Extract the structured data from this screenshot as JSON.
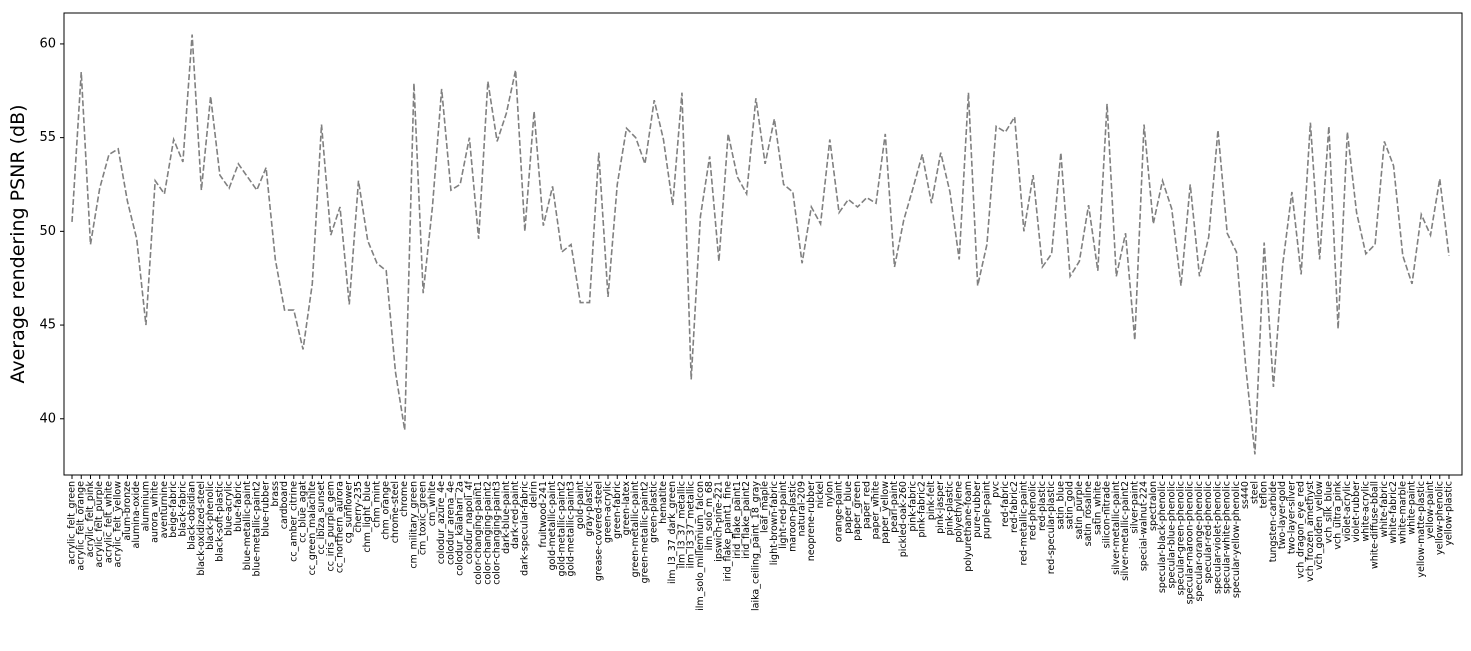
{
  "chart_data": {
    "type": "line",
    "y_label": "Average rendering PSNR (dB)",
    "categories": [
      "acrylic_felt_green",
      "acrylic_felt_orange",
      "acrylic_felt_pink",
      "acrylic_felt_purple",
      "acrylic_felt_white",
      "acrylic_felt_yellow",
      "alum-bronze",
      "alumina-oxide",
      "aluminium",
      "aurora_white",
      "aventurnine",
      "beige-fabric",
      "black-fabric",
      "black-obsidian",
      "black-oxidized-steel",
      "black-phenolic",
      "black-soft-plastic",
      "blue-acrylic",
      "blue-fabric",
      "blue-metallic-paint",
      "blue-metallic-paint2",
      "blue-rubber",
      "brass",
      "cardboard",
      "cc_amber_citrine",
      "cc_blue_agat",
      "cc_green_malachite",
      "cc_ibiza_sunset",
      "cc_iris_purple_gem",
      "cc_northern_aurora",
      "cg_sunflower",
      "cherry-235",
      "chm_light_blue",
      "chm_mint",
      "chm_orange",
      "chrome-steel",
      "chrome",
      "cm_military_green",
      "cm_toxic_green",
      "cm_white",
      "colodur_azure_4e",
      "colodur_arena_4e",
      "colodur_kalahari_2a",
      "colodur_napoli_4f",
      "color-changing-paint1",
      "color-changing-paint2",
      "color-changing-paint3",
      "dark-blue-paint",
      "dark-red-paint",
      "dark-specular-fabric",
      "delrin",
      "fruitwood-241",
      "gold-metallic-paint",
      "gold-metallic-paint2",
      "gold-metallic-paint3",
      "gold-paint",
      "gray-plastic",
      "grease-covered-steel",
      "green-acrylic",
      "green-fabric",
      "green-latex",
      "green-metallic-paint",
      "green-metallic-paint2",
      "green-plastic",
      "hematite",
      "ilm_l3_37_dark_green",
      "ilm_l3_37_metallic",
      "ilm_l3_37_metallic",
      "ilm_solo_millennium_falcon",
      "ilm_solo_m_68",
      "ipswich-pine-221",
      "irid_flake_paint1_fine",
      "irid_flake_paint1",
      "irid_flake_paint2",
      "laika_ceiling_paint_18_gray",
      "leaf_maple",
      "light-brown-fabric",
      "light-red-paint",
      "maroon-plastic",
      "natural-209",
      "neoprene-rubber",
      "nickel",
      "nylon",
      "orange-paint",
      "paper_blue",
      "paper_green",
      "paper_red",
      "paper_white",
      "paper_yellow",
      "pearl-paint",
      "pickled-oak-260",
      "pink-fabric",
      "pink-fabric2",
      "pink-felt",
      "pink-jasper",
      "pink-plastic",
      "polyethylene",
      "polyurethane-foam",
      "pure-rubber",
      "purple-paint",
      "pvc",
      "red-fabric",
      "red-fabric2",
      "red-metallic-paint",
      "red-phenolic",
      "red-plastic",
      "red-specular-plastic",
      "satin_blue",
      "satin_gold",
      "satin_purple",
      "satin_rosaline",
      "satin_white",
      "silicon-nitrade",
      "silver-metallic-paint",
      "silver-metallic-paint2",
      "silver-paint",
      "special-walnut-224",
      "spectralon",
      "specular-black-phenolic",
      "specular-blue-phenolic",
      "specular-green-phenolic",
      "specular-maroon-phenolic",
      "specular-orange-phenolic",
      "specular-red-phenolic",
      "specular-violet-phenolic",
      "specular-white-phenolic",
      "specular-yellow-phenolic",
      "ss440",
      "steel",
      "teflon",
      "tungsten-carbide",
      "two-layer-gold",
      "two-layer-silver",
      "vch_dragon_eye_red",
      "vch_frozen_amethyst",
      "vch_golden_yellow",
      "vch_silk_blue",
      "vch_ultra_pink",
      "violet-acrylic",
      "violet-rubber",
      "white-acrylic",
      "white-diffuse-bball",
      "white-fabric",
      "white-fabric2",
      "white-marble",
      "white-paint",
      "yellow-matte-plastic",
      "yellow-paint",
      "yellow-phenolic",
      "yellow-plastic"
    ],
    "values": [
      50.5,
      58.5,
      49.3,
      52.3,
      54.1,
      54.4,
      51.6,
      49.6,
      45.0,
      52.7,
      52.0,
      54.9,
      53.7,
      60.5,
      52.2,
      57.2,
      53.0,
      52.3,
      53.6,
      52.9,
      52.2,
      53.4,
      48.5,
      45.8,
      45.8,
      43.7,
      47.2,
      55.7,
      49.8,
      51.3,
      46.1,
      52.7,
      49.5,
      48.3,
      47.9,
      42.5,
      39.4,
      57.9,
      46.7,
      51.3,
      57.6,
      52.2,
      52.5,
      55.0,
      49.6,
      58.0,
      54.8,
      56.3,
      58.6,
      50.0,
      56.4,
      50.3,
      52.4,
      48.9,
      49.3,
      46.2,
      46.2,
      54.2,
      46.5,
      52.5,
      55.5,
      55.0,
      53.6,
      57.0,
      54.9,
      51.4,
      57.4,
      42.1,
      50.8,
      54.0,
      48.4,
      55.2,
      52.9,
      52.0,
      57.1,
      53.6,
      56.0,
      52.5,
      52.1,
      48.3,
      51.3,
      50.4,
      54.9,
      51.0,
      51.7,
      51.3,
      51.8,
      51.5,
      55.2,
      48.1,
      50.6,
      52.3,
      54.1,
      51.5,
      54.2,
      52.1,
      48.5,
      57.4,
      47.1,
      49.3,
      55.6,
      55.3,
      56.1,
      50.0,
      53.0,
      48.1,
      48.8,
      54.2,
      47.6,
      48.4,
      51.4,
      47.9,
      56.8,
      47.6,
      49.9,
      44.2,
      55.7,
      50.4,
      52.7,
      51.2,
      47.1,
      52.5,
      47.6,
      49.7,
      55.4,
      49.9,
      48.9,
      42.8,
      38.1,
      49.4,
      41.7,
      48.2,
      52.1,
      47.7,
      55.8,
      48.5,
      55.6,
      44.8,
      55.3,
      51.0,
      48.8,
      49.3,
      54.8,
      53.5,
      48.7,
      47.2,
      50.9,
      49.8,
      52.8,
      48.7
    ],
    "color": "#808080",
    "line_style": "dashed",
    "ylim": [
      37.0,
      61.65
    ],
    "yticks": [
      40,
      45,
      50,
      55,
      60
    ],
    "grid": false
  }
}
